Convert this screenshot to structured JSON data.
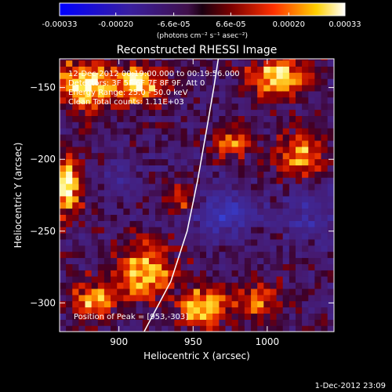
{
  "chart_data": {
    "type": "heatmap",
    "title": "Reconstructed RHESSI Image",
    "xlabel": "Heliocentric X (arcsec)",
    "ylabel": "Heliocentric Y (arcsec)",
    "xlim": [
      860,
      1045
    ],
    "ylim": [
      -320,
      -130
    ],
    "xticks": [
      900,
      950,
      1000
    ],
    "yticks": [
      -150,
      -200,
      -250,
      -300
    ],
    "colorbar": {
      "unit_label": "(photons cm⁻² s⁻¹ asec⁻²)",
      "range": [
        -0.00033,
        0.00033
      ],
      "tick_labels": [
        "-0.00033",
        "-0.00020",
        "-6.6e-05",
        "6.6e-05",
        "0.00020",
        "0.00033"
      ],
      "tick_values": [
        -0.00033,
        -0.0002,
        -6.6e-05,
        6.6e-05,
        0.0002,
        0.00033
      ]
    },
    "annotations": [
      "12-Dec-2012 00:19:00.000 to 00:19:56.000",
      "Detectors: 3F 5F 6F 7F 8F 9F, Att 0",
      "Energy Range: 25.0 - 50.0 keV",
      "Clean    Total counts: 1.11E+03"
    ],
    "peak_label": "Position of Peak = [953,-303]",
    "limb_curve": [
      [
        917,
        -320
      ],
      [
        935,
        -285
      ],
      [
        946,
        -250
      ],
      [
        953,
        -215
      ],
      [
        959,
        -180
      ],
      [
        964,
        -150
      ],
      [
        967,
        -130
      ]
    ],
    "grid_step_arcsec": 4.3,
    "bright_regions": [
      {
        "x": 875,
        "y": -150,
        "rx": 20,
        "ry": 20,
        "level": 0.9
      },
      {
        "x": 912,
        "y": -150,
        "rx": 18,
        "ry": 14,
        "level": 0.9
      },
      {
        "x": 1005,
        "y": -145,
        "rx": 22,
        "ry": 15,
        "level": 0.85
      },
      {
        "x": 1020,
        "y": -200,
        "rx": 16,
        "ry": 18,
        "level": 0.7
      },
      {
        "x": 863,
        "y": -220,
        "rx": 10,
        "ry": 22,
        "level": 0.95
      },
      {
        "x": 915,
        "y": -280,
        "rx": 22,
        "ry": 20,
        "level": 0.8
      },
      {
        "x": 955,
        "y": -305,
        "rx": 16,
        "ry": 14,
        "level": 0.9
      },
      {
        "x": 880,
        "y": -300,
        "rx": 16,
        "ry": 15,
        "level": 0.7
      },
      {
        "x": 940,
        "y": -230,
        "rx": 14,
        "ry": 12,
        "level": 0.45
      },
      {
        "x": 990,
        "y": -300,
        "rx": 18,
        "ry": 14,
        "level": 0.55
      },
      {
        "x": 975,
        "y": -190,
        "rx": 14,
        "ry": 14,
        "level": 0.5
      }
    ],
    "dark_regions": [
      {
        "x": 970,
        "y": -240,
        "rx": 22,
        "ry": 18,
        "level": -0.6
      },
      {
        "x": 1025,
        "y": -240,
        "rx": 18,
        "ry": 22,
        "level": -0.4
      },
      {
        "x": 900,
        "y": -215,
        "rx": 16,
        "ry": 14,
        "level": -0.3
      }
    ]
  },
  "footer_timestamp": "1-Dec-2012 23:09"
}
